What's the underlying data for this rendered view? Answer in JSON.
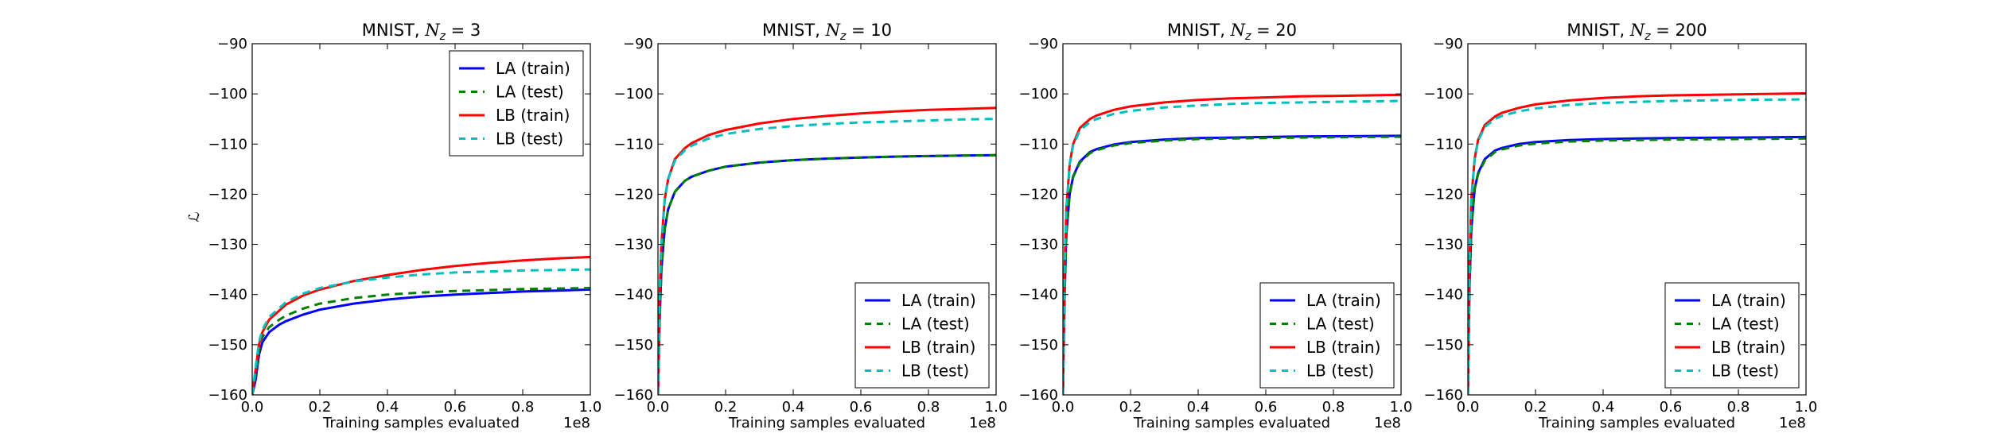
{
  "figure": {
    "y_axis_label": "ℒ"
  },
  "chart_data": [
    {
      "type": "line",
      "title": "MNIST, ",
      "title_math": "N",
      "title_sub": "z",
      "title_suffix": " = 3",
      "xlabel": "Training samples evaluated",
      "x_offset_label": "1e8",
      "xlim": [
        0,
        1.0
      ],
      "ylim": [
        -160,
        -90
      ],
      "xticks": [
        "0.0",
        "0.2",
        "0.4",
        "0.6",
        "0.8",
        "1.0"
      ],
      "yticks": [
        "−160",
        "−150",
        "−140",
        "−130",
        "−120",
        "−110",
        "−100",
        "−90"
      ],
      "legend": {
        "placement": "top-right",
        "items": [
          "LA (train)",
          "LA (test)",
          "LB (train)",
          "LB (test)"
        ]
      },
      "series": [
        {
          "name": "LA (train)",
          "color": "#0000ff",
          "style": "solid",
          "x": [
            0.0,
            0.01,
            0.02,
            0.03,
            0.05,
            0.08,
            0.1,
            0.15,
            0.2,
            0.3,
            0.4,
            0.5,
            0.6,
            0.7,
            0.8,
            0.9,
            1.0
          ],
          "y": [
            -160,
            -157,
            -152,
            -149.5,
            -147.5,
            -146.0,
            -145.3,
            -144.0,
            -143.0,
            -141.8,
            -141.0,
            -140.4,
            -140.0,
            -139.7,
            -139.4,
            -139.2,
            -139.0
          ]
        },
        {
          "name": "LA (test)",
          "color": "#008000",
          "style": "dashed",
          "x": [
            0.0,
            0.01,
            0.02,
            0.03,
            0.05,
            0.08,
            0.1,
            0.15,
            0.2,
            0.3,
            0.4,
            0.5,
            0.6,
            0.7,
            0.8,
            0.9,
            1.0
          ],
          "y": [
            -160,
            -156,
            -151,
            -148.5,
            -146.5,
            -145.0,
            -144.2,
            -142.8,
            -141.8,
            -140.7,
            -140.0,
            -139.6,
            -139.3,
            -139.1,
            -138.9,
            -138.8,
            -138.7
          ]
        },
        {
          "name": "LB (train)",
          "color": "#ff0000",
          "style": "solid",
          "x": [
            0.0,
            0.01,
            0.02,
            0.03,
            0.05,
            0.08,
            0.1,
            0.15,
            0.2,
            0.3,
            0.4,
            0.5,
            0.6,
            0.7,
            0.8,
            0.9,
            1.0
          ],
          "y": [
            -160,
            -155,
            -150,
            -147.5,
            -145.0,
            -143.2,
            -142.0,
            -140.2,
            -139.0,
            -137.3,
            -136.1,
            -135.1,
            -134.3,
            -133.7,
            -133.2,
            -132.8,
            -132.5
          ]
        },
        {
          "name": "LB (test)",
          "color": "#00bfbf",
          "style": "dashed",
          "x": [
            0.0,
            0.01,
            0.02,
            0.03,
            0.05,
            0.08,
            0.1,
            0.15,
            0.2,
            0.3,
            0.4,
            0.5,
            0.6,
            0.7,
            0.8,
            0.9,
            1.0
          ],
          "y": [
            -160,
            -154.5,
            -149.5,
            -147.0,
            -144.5,
            -142.7,
            -141.5,
            -139.8,
            -138.7,
            -137.4,
            -136.6,
            -136.0,
            -135.6,
            -135.4,
            -135.2,
            -135.1,
            -135.0
          ]
        }
      ]
    },
    {
      "type": "line",
      "title": "MNIST, ",
      "title_math": "N",
      "title_sub": "z",
      "title_suffix": " = 10",
      "xlabel": "Training samples evaluated",
      "x_offset_label": "1e8",
      "xlim": [
        0,
        1.0
      ],
      "ylim": [
        -160,
        -90
      ],
      "xticks": [
        "0.0",
        "0.2",
        "0.4",
        "0.6",
        "0.8",
        "1.0"
      ],
      "yticks": [
        "−160",
        "−150",
        "−140",
        "−130",
        "−120",
        "−110",
        "−100",
        "−90"
      ],
      "legend": {
        "placement": "bottom-right",
        "items": [
          "LA (train)",
          "LA (test)",
          "LB (train)",
          "LB (test)"
        ]
      },
      "series": [
        {
          "name": "LA (train)",
          "color": "#0000ff",
          "style": "solid",
          "x": [
            0.0,
            0.005,
            0.01,
            0.02,
            0.03,
            0.05,
            0.08,
            0.1,
            0.15,
            0.2,
            0.3,
            0.4,
            0.5,
            0.6,
            0.7,
            0.8,
            0.9,
            1.0
          ],
          "y": [
            -160,
            -145,
            -135,
            -127,
            -123,
            -119.5,
            -117.3,
            -116.5,
            -115.3,
            -114.5,
            -113.7,
            -113.2,
            -112.9,
            -112.7,
            -112.5,
            -112.4,
            -112.3,
            -112.2
          ]
        },
        {
          "name": "LA (test)",
          "color": "#008000",
          "style": "dashed",
          "x": [
            0.0,
            0.005,
            0.01,
            0.02,
            0.03,
            0.05,
            0.08,
            0.1,
            0.15,
            0.2,
            0.3,
            0.4,
            0.5,
            0.6,
            0.7,
            0.8,
            0.9,
            1.0
          ],
          "y": [
            -160,
            -145,
            -135,
            -127,
            -123,
            -119.5,
            -117.3,
            -116.5,
            -115.3,
            -114.5,
            -113.7,
            -113.2,
            -112.9,
            -112.7,
            -112.5,
            -112.4,
            -112.3,
            -112.2
          ]
        },
        {
          "name": "LB (train)",
          "color": "#ff0000",
          "style": "solid",
          "x": [
            0.0,
            0.005,
            0.01,
            0.02,
            0.03,
            0.05,
            0.08,
            0.1,
            0.15,
            0.2,
            0.3,
            0.4,
            0.5,
            0.6,
            0.7,
            0.8,
            0.9,
            1.0
          ],
          "y": [
            -160,
            -140,
            -130,
            -121,
            -117,
            -113,
            -110.8,
            -109.8,
            -108.2,
            -107.2,
            -105.9,
            -105.0,
            -104.4,
            -103.9,
            -103.5,
            -103.2,
            -103.0,
            -102.8
          ]
        },
        {
          "name": "LB (test)",
          "color": "#00bfbf",
          "style": "dashed",
          "x": [
            0.0,
            0.005,
            0.01,
            0.02,
            0.03,
            0.05,
            0.08,
            0.1,
            0.15,
            0.2,
            0.3,
            0.4,
            0.5,
            0.6,
            0.7,
            0.8,
            0.9,
            1.0
          ],
          "y": [
            -160,
            -140,
            -130,
            -121,
            -117,
            -113.3,
            -111.2,
            -110.3,
            -108.9,
            -108.0,
            -107.0,
            -106.4,
            -106.0,
            -105.7,
            -105.5,
            -105.3,
            -105.1,
            -105.0
          ]
        }
      ]
    },
    {
      "type": "line",
      "title": "MNIST, ",
      "title_math": "N",
      "title_sub": "z",
      "title_suffix": " = 20",
      "xlabel": "Training samples evaluated",
      "x_offset_label": "1e8",
      "xlim": [
        0,
        1.0
      ],
      "ylim": [
        -160,
        -90
      ],
      "xticks": [
        "0.0",
        "0.2",
        "0.4",
        "0.6",
        "0.8",
        "1.0"
      ],
      "yticks": [
        "−160",
        "−150",
        "−140",
        "−130",
        "−120",
        "−110",
        "−100",
        "−90"
      ],
      "legend": {
        "placement": "bottom-right",
        "items": [
          "LA (train)",
          "LA (test)",
          "LB (train)",
          "LB (test)"
        ]
      },
      "series": [
        {
          "name": "LA (train)",
          "color": "#0000ff",
          "style": "solid",
          "x": [
            0.0,
            0.005,
            0.01,
            0.02,
            0.03,
            0.05,
            0.08,
            0.1,
            0.15,
            0.2,
            0.3,
            0.4,
            0.5,
            0.6,
            0.7,
            0.8,
            0.9,
            1.0
          ],
          "y": [
            -160,
            -140,
            -128,
            -120,
            -116.5,
            -113.5,
            -111.6,
            -111.0,
            -110.1,
            -109.6,
            -109.1,
            -108.8,
            -108.7,
            -108.6,
            -108.5,
            -108.45,
            -108.4,
            -108.35
          ]
        },
        {
          "name": "LA (test)",
          "color": "#008000",
          "style": "dashed",
          "x": [
            0.0,
            0.005,
            0.01,
            0.02,
            0.03,
            0.05,
            0.08,
            0.1,
            0.15,
            0.2,
            0.3,
            0.4,
            0.5,
            0.6,
            0.7,
            0.8,
            0.9,
            1.0
          ],
          "y": [
            -160,
            -140,
            -128,
            -120,
            -116.6,
            -113.7,
            -111.8,
            -111.2,
            -110.3,
            -109.8,
            -109.3,
            -109.0,
            -108.9,
            -108.8,
            -108.7,
            -108.65,
            -108.6,
            -108.55
          ]
        },
        {
          "name": "LB (train)",
          "color": "#ff0000",
          "style": "solid",
          "x": [
            0.0,
            0.005,
            0.01,
            0.02,
            0.03,
            0.05,
            0.08,
            0.1,
            0.15,
            0.2,
            0.3,
            0.4,
            0.5,
            0.6,
            0.7,
            0.8,
            0.9,
            1.0
          ],
          "y": [
            -160,
            -135,
            -123,
            -114,
            -110,
            -106.8,
            -105.0,
            -104.3,
            -103.2,
            -102.5,
            -101.7,
            -101.2,
            -100.9,
            -100.7,
            -100.5,
            -100.4,
            -100.3,
            -100.2
          ]
        },
        {
          "name": "LB (test)",
          "color": "#00bfbf",
          "style": "dashed",
          "x": [
            0.0,
            0.005,
            0.01,
            0.02,
            0.03,
            0.05,
            0.08,
            0.1,
            0.15,
            0.2,
            0.3,
            0.4,
            0.5,
            0.6,
            0.7,
            0.8,
            0.9,
            1.0
          ],
          "y": [
            -160,
            -135,
            -123,
            -114,
            -110.3,
            -107.3,
            -105.6,
            -105.0,
            -104.0,
            -103.4,
            -102.7,
            -102.3,
            -102.0,
            -101.8,
            -101.7,
            -101.6,
            -101.5,
            -101.4
          ]
        }
      ]
    },
    {
      "type": "line",
      "title": "MNIST, ",
      "title_math": "N",
      "title_sub": "z",
      "title_suffix": " = 200",
      "xlabel": "Training samples evaluated",
      "x_offset_label": "1e8",
      "xlim": [
        0,
        1.0
      ],
      "ylim": [
        -160,
        -90
      ],
      "xticks": [
        "0.0",
        "0.2",
        "0.4",
        "0.6",
        "0.8",
        "1.0"
      ],
      "yticks": [
        "−160",
        "−150",
        "−140",
        "−130",
        "−120",
        "−110",
        "−100",
        "−90"
      ],
      "legend": {
        "placement": "bottom-right",
        "items": [
          "LA (train)",
          "LA (test)",
          "LB (train)",
          "LB (test)"
        ]
      },
      "series": [
        {
          "name": "LA (train)",
          "color": "#0000ff",
          "style": "solid",
          "x": [
            0.0,
            0.005,
            0.01,
            0.02,
            0.03,
            0.05,
            0.08,
            0.1,
            0.15,
            0.2,
            0.3,
            0.4,
            0.5,
            0.6,
            0.7,
            0.8,
            0.9,
            1.0
          ],
          "y": [
            -160,
            -138,
            -127,
            -119,
            -115.8,
            -113.0,
            -111.3,
            -110.8,
            -110.0,
            -109.6,
            -109.2,
            -109.0,
            -108.9,
            -108.8,
            -108.75,
            -108.7,
            -108.65,
            -108.6
          ]
        },
        {
          "name": "LA (test)",
          "color": "#008000",
          "style": "dashed",
          "x": [
            0.0,
            0.005,
            0.01,
            0.02,
            0.03,
            0.05,
            0.08,
            0.1,
            0.15,
            0.2,
            0.3,
            0.4,
            0.5,
            0.6,
            0.7,
            0.8,
            0.9,
            1.0
          ],
          "y": [
            -160,
            -138,
            -127,
            -119,
            -116.0,
            -113.3,
            -111.6,
            -111.1,
            -110.3,
            -109.9,
            -109.5,
            -109.3,
            -109.2,
            -109.1,
            -109.05,
            -109.0,
            -108.95,
            -108.9
          ]
        },
        {
          "name": "LB (train)",
          "color": "#ff0000",
          "style": "solid",
          "x": [
            0.0,
            0.005,
            0.01,
            0.02,
            0.03,
            0.05,
            0.08,
            0.1,
            0.15,
            0.2,
            0.3,
            0.4,
            0.5,
            0.6,
            0.7,
            0.8,
            0.9,
            1.0
          ],
          "y": [
            -160,
            -133,
            -121,
            -113,
            -109.2,
            -106.2,
            -104.5,
            -103.8,
            -102.8,
            -102.1,
            -101.3,
            -100.8,
            -100.5,
            -100.3,
            -100.2,
            -100.1,
            -100.0,
            -99.9
          ]
        },
        {
          "name": "LB (test)",
          "color": "#00bfbf",
          "style": "dashed",
          "x": [
            0.0,
            0.005,
            0.01,
            0.02,
            0.03,
            0.05,
            0.08,
            0.1,
            0.15,
            0.2,
            0.3,
            0.4,
            0.5,
            0.6,
            0.7,
            0.8,
            0.9,
            1.0
          ],
          "y": [
            -160,
            -133,
            -121,
            -113,
            -109.4,
            -106.6,
            -105.0,
            -104.4,
            -103.5,
            -102.9,
            -102.2,
            -101.8,
            -101.6,
            -101.4,
            -101.3,
            -101.2,
            -101.15,
            -101.1
          ]
        }
      ]
    }
  ]
}
